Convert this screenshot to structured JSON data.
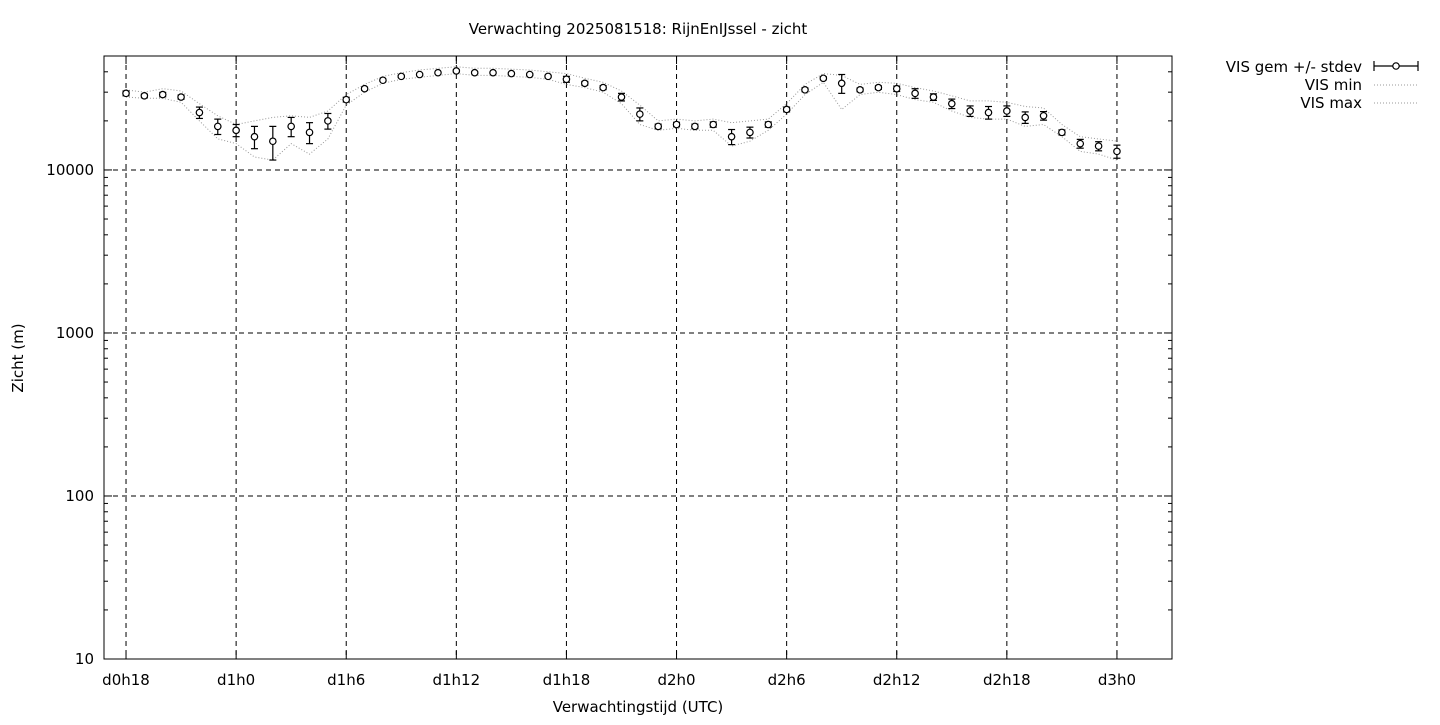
{
  "chart_data": {
    "type": "line",
    "title": "Verwachting 2025081518: RijnEnIJssel - zicht",
    "xlabel": "Verwachtingstijd (UTC)",
    "ylabel": "Zicht (m)",
    "yscale": "log",
    "ylim": [
      10,
      50000
    ],
    "xlim_hours": [
      -1.2,
      57.0
    ],
    "grid": true,
    "legend_position": "outside-top-right",
    "x_ticks": [
      {
        "hour": 0,
        "label": "d0h18"
      },
      {
        "hour": 6,
        "label": "d1h0"
      },
      {
        "hour": 12,
        "label": "d1h6"
      },
      {
        "hour": 18,
        "label": "d1h12"
      },
      {
        "hour": 24,
        "label": "d1h18"
      },
      {
        "hour": 30,
        "label": "d2h0"
      },
      {
        "hour": 36,
        "label": "d2h6"
      },
      {
        "hour": 42,
        "label": "d2h12"
      },
      {
        "hour": 48,
        "label": "d2h18"
      },
      {
        "hour": 54,
        "label": "d3h0"
      }
    ],
    "y_ticks": [
      {
        "value": 10,
        "label": "10"
      },
      {
        "value": 100,
        "label": "100"
      },
      {
        "value": 1000,
        "label": "1000"
      },
      {
        "value": 10000,
        "label": "10000"
      }
    ],
    "series": [
      {
        "name": "VIS gem +/- stdev",
        "style": "errorbars"
      },
      {
        "name": "VIS min",
        "style": "dotted"
      },
      {
        "name": "VIS max",
        "style": "dotted"
      }
    ],
    "points": [
      {
        "x": 0,
        "mean": 29500,
        "sd": 1000,
        "min": 28000,
        "max": 31000
      },
      {
        "x": 1,
        "mean": 28500,
        "sd": 700,
        "min": 27500,
        "max": 30000
      },
      {
        "x": 2,
        "mean": 29000,
        "sd": 900,
        "min": 27500,
        "max": 31500
      },
      {
        "x": 3,
        "mean": 28000,
        "sd": 800,
        "min": 26000,
        "max": 30500
      },
      {
        "x": 4,
        "mean": 22500,
        "sd": 1800,
        "min": 20000,
        "max": 25500
      },
      {
        "x": 5,
        "mean": 18500,
        "sd": 2000,
        "min": 15500,
        "max": 21500
      },
      {
        "x": 6,
        "mean": 17500,
        "sd": 1500,
        "min": 14500,
        "max": 19000
      },
      {
        "x": 7,
        "mean": 16000,
        "sd": 2500,
        "min": 12000,
        "max": 20000
      },
      {
        "x": 8,
        "mean": 15000,
        "sd": 3500,
        "min": 11500,
        "max": 21000
      },
      {
        "x": 9,
        "mean": 18500,
        "sd": 2500,
        "min": 14500,
        "max": 21500
      },
      {
        "x": 10,
        "mean": 17000,
        "sd": 2500,
        "min": 12500,
        "max": 21000
      },
      {
        "x": 11,
        "mean": 20000,
        "sd": 2200,
        "min": 15500,
        "max": 23000
      },
      {
        "x": 12,
        "mean": 27000,
        "sd": 900,
        "min": 25000,
        "max": 29000
      },
      {
        "x": 13,
        "mean": 31500,
        "sd": 700,
        "min": 30000,
        "max": 33500
      },
      {
        "x": 14,
        "mean": 35500,
        "sd": 600,
        "min": 34000,
        "max": 37500
      },
      {
        "x": 15,
        "mean": 37500,
        "sd": 600,
        "min": 36000,
        "max": 39500
      },
      {
        "x": 16,
        "mean": 38500,
        "sd": 600,
        "min": 37000,
        "max": 41000
      },
      {
        "x": 17,
        "mean": 39500,
        "sd": 600,
        "min": 38000,
        "max": 42000
      },
      {
        "x": 18,
        "mean": 40500,
        "sd": 600,
        "min": 39000,
        "max": 43000
      },
      {
        "x": 19,
        "mean": 39500,
        "sd": 600,
        "min": 38000,
        "max": 42000
      },
      {
        "x": 20,
        "mean": 39500,
        "sd": 600,
        "min": 38000,
        "max": 42000
      },
      {
        "x": 21,
        "mean": 39000,
        "sd": 600,
        "min": 37500,
        "max": 41500
      },
      {
        "x": 22,
        "mean": 38500,
        "sd": 600,
        "min": 37000,
        "max": 41000
      },
      {
        "x": 23,
        "mean": 37500,
        "sd": 600,
        "min": 36000,
        "max": 40000
      },
      {
        "x": 24,
        "mean": 36000,
        "sd": 1500,
        "min": 33500,
        "max": 39000
      },
      {
        "x": 25,
        "mean": 34000,
        "sd": 900,
        "min": 32000,
        "max": 36500
      },
      {
        "x": 26,
        "mean": 32000,
        "sd": 900,
        "min": 30000,
        "max": 34500
      },
      {
        "x": 27,
        "mean": 28000,
        "sd": 1500,
        "min": 25500,
        "max": 30500
      },
      {
        "x": 28,
        "mean": 22000,
        "sd": 2000,
        "min": 19000,
        "max": 25000
      },
      {
        "x": 29,
        "mean": 18500,
        "sd": 600,
        "min": 17500,
        "max": 20000
      },
      {
        "x": 30,
        "mean": 19000,
        "sd": 600,
        "min": 18000,
        "max": 20500
      },
      {
        "x": 31,
        "mean": 18500,
        "sd": 600,
        "min": 17500,
        "max": 20000
      },
      {
        "x": 32,
        "mean": 19000,
        "sd": 700,
        "min": 17500,
        "max": 20500
      },
      {
        "x": 33,
        "mean": 16000,
        "sd": 1700,
        "min": 14000,
        "max": 19500
      },
      {
        "x": 34,
        "mean": 17000,
        "sd": 1300,
        "min": 15000,
        "max": 20000
      },
      {
        "x": 35,
        "mean": 19000,
        "sd": 700,
        "min": 17500,
        "max": 20500
      },
      {
        "x": 36,
        "mean": 23500,
        "sd": 800,
        "min": 22000,
        "max": 25500
      },
      {
        "x": 37,
        "mean": 31000,
        "sd": 800,
        "min": 29000,
        "max": 33500
      },
      {
        "x": 38,
        "mean": 36500,
        "sd": 800,
        "min": 34500,
        "max": 39000
      },
      {
        "x": 39,
        "mean": 34000,
        "sd": 4500,
        "min": 23500,
        "max": 38000
      },
      {
        "x": 40,
        "mean": 31000,
        "sd": 800,
        "min": 29000,
        "max": 33500
      },
      {
        "x": 41,
        "mean": 32000,
        "sd": 800,
        "min": 30000,
        "max": 34500
      },
      {
        "x": 42,
        "mean": 31500,
        "sd": 1200,
        "min": 29000,
        "max": 34000
      },
      {
        "x": 43,
        "mean": 29500,
        "sd": 2000,
        "min": 27000,
        "max": 32000
      },
      {
        "x": 44,
        "mean": 28000,
        "sd": 1300,
        "min": 26000,
        "max": 30500
      },
      {
        "x": 45,
        "mean": 25500,
        "sd": 1700,
        "min": 23000,
        "max": 28500
      },
      {
        "x": 46,
        "mean": 23000,
        "sd": 1700,
        "min": 21000,
        "max": 26500
      },
      {
        "x": 47,
        "mean": 22500,
        "sd": 2000,
        "min": 20500,
        "max": 26500
      },
      {
        "x": 48,
        "mean": 23000,
        "sd": 1700,
        "min": 20500,
        "max": 26000
      },
      {
        "x": 49,
        "mean": 21000,
        "sd": 1700,
        "min": 18500,
        "max": 24500
      },
      {
        "x": 50,
        "mean": 21500,
        "sd": 1300,
        "min": 19000,
        "max": 24000
      },
      {
        "x": 51,
        "mean": 17000,
        "sd": 600,
        "min": 16000,
        "max": 19000
      },
      {
        "x": 52,
        "mean": 14500,
        "sd": 900,
        "min": 13000,
        "max": 16000
      },
      {
        "x": 53,
        "mean": 14000,
        "sd": 900,
        "min": 12500,
        "max": 15500
      },
      {
        "x": 54,
        "mean": 13000,
        "sd": 1200,
        "min": 11500,
        "max": 15000
      }
    ]
  }
}
